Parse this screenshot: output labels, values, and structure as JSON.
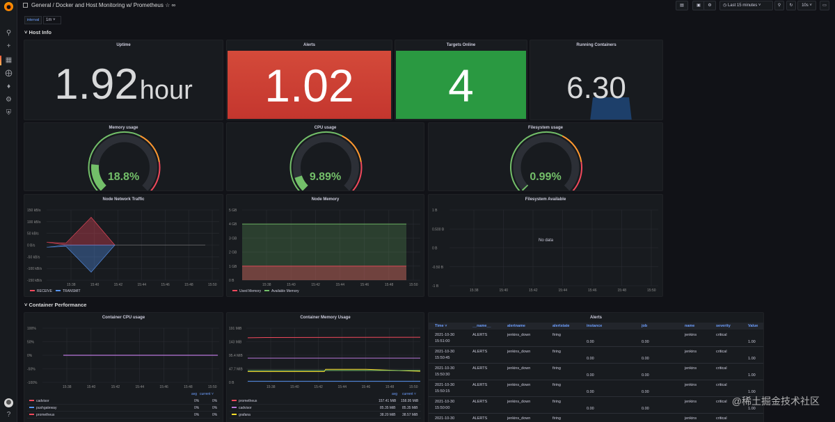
{
  "header": {
    "breadcrumb": "General  / Docker and Host Monitoring w/ Prometheus",
    "time_range": "Last 15 minutes",
    "refresh": "10s"
  },
  "variables": {
    "label": "interval",
    "value": "1m"
  },
  "rows": {
    "host_info": "Host Info",
    "container_perf": "Container Performance"
  },
  "stats": {
    "uptime": {
      "title": "Uptime",
      "value": "1.92",
      "unit": "hour"
    },
    "alerts": {
      "title": "Alerts",
      "value": "1.02"
    },
    "targets": {
      "title": "Targets Online",
      "value": "4"
    },
    "containers": {
      "title": "Running Containers",
      "value": "6.30"
    }
  },
  "gauges": {
    "memory": {
      "title": "Memory usage",
      "value": "18.8%",
      "fraction": 0.188
    },
    "cpu": {
      "title": "CPU usage",
      "value": "9.89%",
      "fraction": 0.0989
    },
    "fs": {
      "title": "Filesystem usage",
      "value": "0.99%",
      "fraction": 0.0099
    }
  },
  "colors": {
    "green": "#73bf69",
    "red": "#c4362e",
    "stat_green": "#2a9941",
    "blue_link": "#6e9fff"
  },
  "panels": {
    "net": {
      "title": "Node Network Traffic",
      "yticks": [
        "150 kB/s",
        "100 kB/s",
        "50 kB/s",
        "0 B/s",
        "-50 kB/s",
        "-100 kB/s",
        "-150 kB/s"
      ],
      "xticks": [
        "15:38",
        "15:40",
        "15:42",
        "15:44",
        "15:46",
        "15:48",
        "15:50"
      ],
      "legend": [
        "RECEIVE",
        "TRANSMIT"
      ]
    },
    "mem": {
      "title": "Node Memory",
      "yticks": [
        "5 GB",
        "4 GB",
        "3 GB",
        "2 GB",
        "1 GB",
        "0 B"
      ],
      "xticks": [
        "15:38",
        "15:40",
        "15:42",
        "15:44",
        "15:46",
        "15:48",
        "15:50"
      ],
      "legend": [
        "Used Memory",
        "Available Memory"
      ]
    },
    "fsa": {
      "title": "Filesystem Available",
      "yticks": [
        "1 B",
        "0.500 B",
        "0 B",
        "-0.50 B",
        "-1 B"
      ],
      "xticks": [
        "15:38",
        "15:40",
        "15:42",
        "15:44",
        "15:46",
        "15:48",
        "15:50"
      ],
      "nodata": "No data"
    },
    "ccpu": {
      "title": "Container CPU usage",
      "yticks": [
        "100%",
        "50%",
        "0%",
        "-50%",
        "-100%"
      ],
      "xticks": [
        "15:38",
        "15:40",
        "15:42",
        "15:44",
        "15:46",
        "15:48",
        "15:50"
      ],
      "legend_head": [
        "avg",
        "current"
      ],
      "legend": [
        {
          "name": "cadvisor",
          "avg": "0%",
          "current": "0%",
          "color": "#f2495c"
        },
        {
          "name": "pushgateway",
          "avg": "0%",
          "current": "0%",
          "color": "#5794f2"
        },
        {
          "name": "prometheus",
          "avg": "0%",
          "current": "0%",
          "color": "#f2495c"
        }
      ]
    },
    "cmem": {
      "title": "Container Memory Usage",
      "yticks": [
        "191 MiB",
        "143 MiB",
        "95.4 MiB",
        "47.7 MiB",
        "0 B"
      ],
      "xticks": [
        "15:38",
        "15:40",
        "15:42",
        "15:44",
        "15:46",
        "15:48",
        "15:50"
      ],
      "legend_head": [
        "avg",
        "current"
      ],
      "legend": [
        {
          "name": "prometheus",
          "avg": "157.41 MiB",
          "current": "158.95 MiB",
          "color": "#f2495c"
        },
        {
          "name": "cadvisor",
          "avg": "85.35 MiB",
          "current": "85.35 MiB",
          "color": "#b877d9"
        },
        {
          "name": "grafana",
          "avg": "38.20 MiB",
          "current": "38.57 MiB",
          "color": "#fade2a"
        }
      ]
    }
  },
  "alerts_table": {
    "title": "Alerts",
    "columns": [
      "Time",
      "__name__",
      "alertname",
      "alertstate",
      "instance",
      "job",
      "name",
      "severity",
      "Value"
    ],
    "rows": [
      [
        "2021-10-30 15:51:00",
        "ALERTS",
        "jenkins_down",
        "firing",
        "0.00",
        "0.00",
        "jenkins",
        "critical",
        "1.00"
      ],
      [
        "2021-10-30 15:50:45",
        "ALERTS",
        "jenkins_down",
        "firing",
        "0.00",
        "0.00",
        "jenkins",
        "critical",
        "1.00"
      ],
      [
        "2021-10-30 15:50:30",
        "ALERTS",
        "jenkins_down",
        "firing",
        "0.00",
        "0.00",
        "jenkins",
        "critical",
        "1.00"
      ],
      [
        "2021-10-30 15:50:15",
        "ALERTS",
        "jenkins_down",
        "firing",
        "0.00",
        "0.00",
        "jenkins",
        "critical",
        "1.00"
      ],
      [
        "2021-10-30 15:50:00",
        "ALERTS",
        "jenkins_down",
        "firing",
        "0.00",
        "0.00",
        "jenkins",
        "critical",
        "1.00"
      ],
      [
        "2021-10-30",
        "ALERTS",
        "jenkins_down",
        "firing",
        "",
        "",
        "jenkins",
        "critical",
        ""
      ]
    ]
  },
  "watermark": "@稀土掘金技术社区"
}
